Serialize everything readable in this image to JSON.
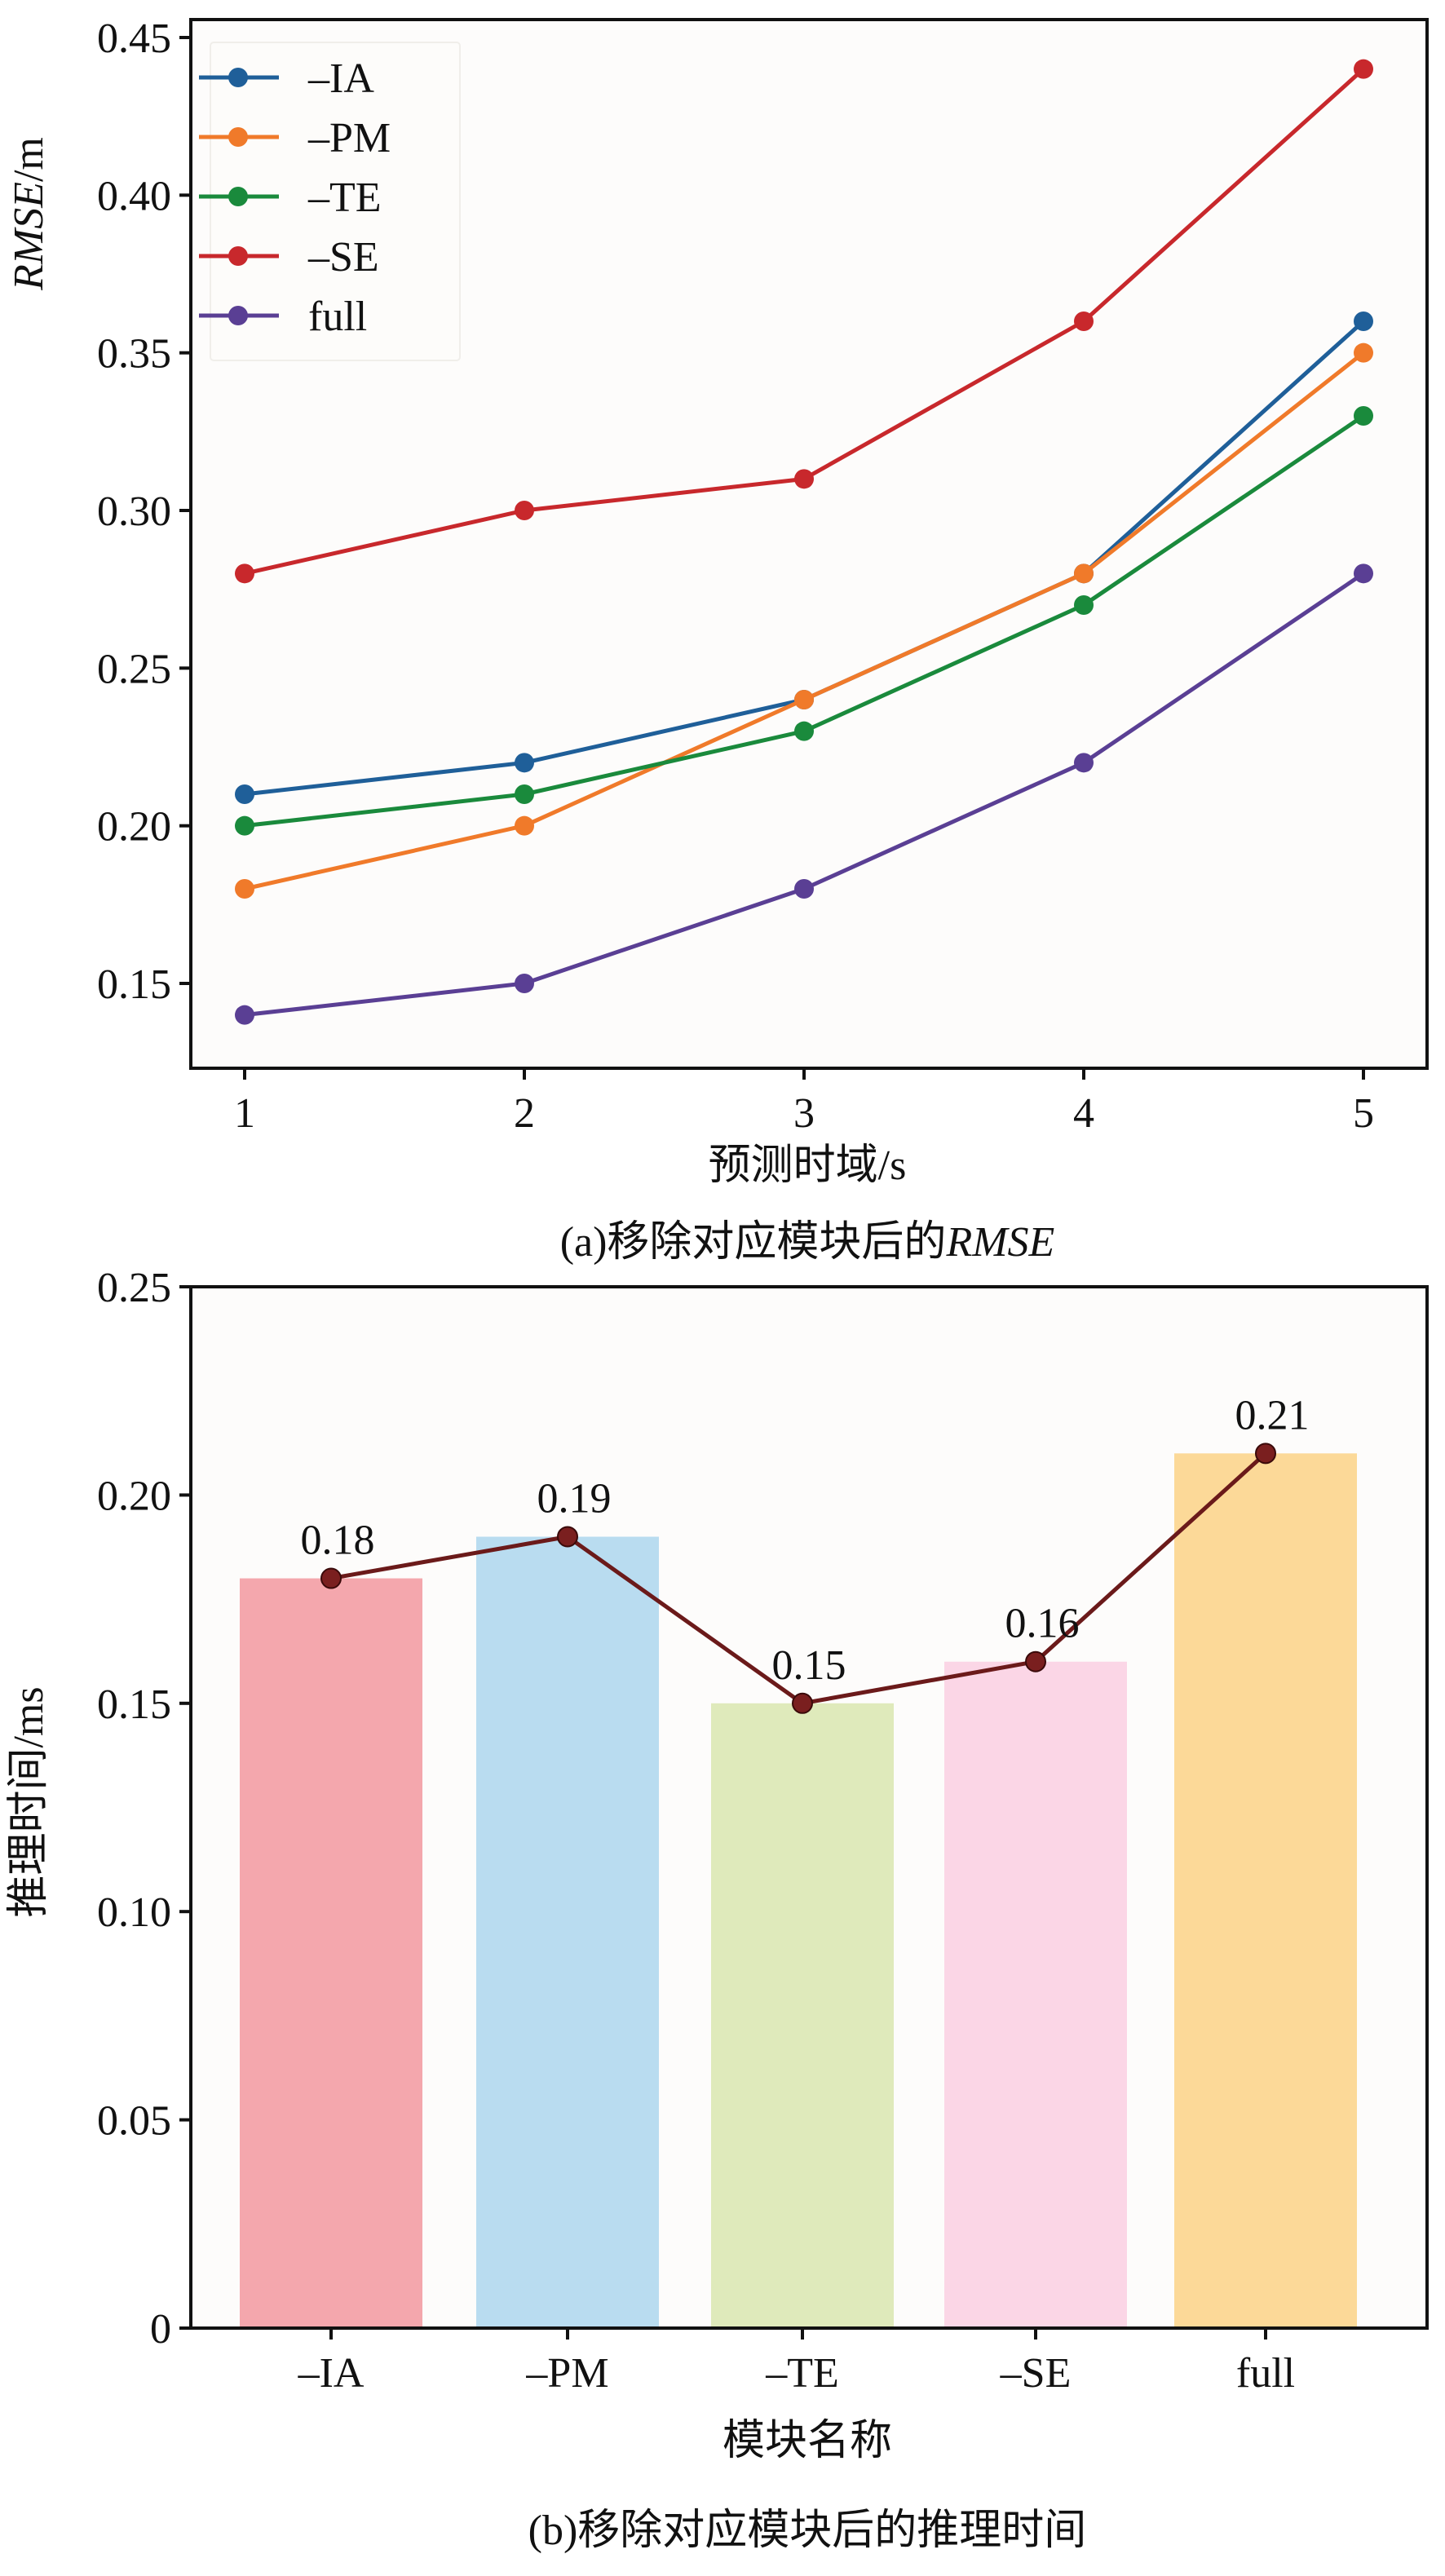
{
  "chart_data": [
    {
      "type": "line",
      "title": "(a)移除对应模块后的RMSE",
      "caption_prefix": "(a)移除对应模块后的",
      "caption_italic": "RMSE",
      "xlabel": "预测时域/s",
      "ylabel": "RMSE/m",
      "ylabel_italic": "RMSE",
      "ylabel_unit": "/m",
      "x": [
        1,
        2,
        3,
        4,
        5
      ],
      "x_tick_labels": [
        "1",
        "2",
        "3",
        "4",
        "5"
      ],
      "xlim": [
        0.9,
        5.1
      ],
      "ylim": [
        0.125,
        0.455
      ],
      "y_ticks": [
        0.15,
        0.2,
        0.25,
        0.3,
        0.35,
        0.4,
        0.45
      ],
      "y_tick_labels": [
        "0.15",
        "0.20",
        "0.25",
        "0.30",
        "0.35",
        "0.40",
        "0.45"
      ],
      "grid": false,
      "legend_position": "top-left",
      "series": [
        {
          "name": "–IA",
          "color": "#1f5f99",
          "values": [
            0.21,
            0.22,
            0.24,
            0.28,
            0.36
          ]
        },
        {
          "name": "–PM",
          "color": "#f07a2a",
          "values": [
            0.18,
            0.2,
            0.24,
            0.28,
            0.35
          ]
        },
        {
          "name": "–TE",
          "color": "#1a8a3c",
          "values": [
            0.2,
            0.21,
            0.23,
            0.27,
            0.33
          ]
        },
        {
          "name": "–SE",
          "color": "#c8282c",
          "values": [
            0.28,
            0.3,
            0.31,
            0.36,
            0.44
          ]
        },
        {
          "name": "full",
          "color": "#5a3f94",
          "values": [
            0.14,
            0.15,
            0.18,
            0.22,
            0.28
          ]
        }
      ]
    },
    {
      "type": "bar",
      "title": "(b)移除对应模块后的推理时间",
      "caption": "(b)移除对应模块后的推理时间",
      "xlabel": "模块名称",
      "ylabel": "推理时间/ms",
      "categories": [
        "–IA",
        "–PM",
        "–TE",
        "–SE",
        "full"
      ],
      "values": [
        0.18,
        0.19,
        0.15,
        0.16,
        0.21
      ],
      "data_labels": [
        "0.18",
        "0.19",
        "0.15",
        "0.16",
        "0.21"
      ],
      "bar_colors": [
        "#f4a7ad",
        "#b9dcf0",
        "#dfeabb",
        "#fbd6e6",
        "#fcd998"
      ],
      "overlay_line_color": "#6b1a1a",
      "ylim": [
        0,
        0.25
      ],
      "y_ticks": [
        0,
        0.05,
        0.1,
        0.15,
        0.2,
        0.25
      ],
      "y_tick_labels": [
        "0",
        "0.05",
        "0.10",
        "0.15",
        "0.20",
        "0.25"
      ],
      "grid": false
    }
  ]
}
